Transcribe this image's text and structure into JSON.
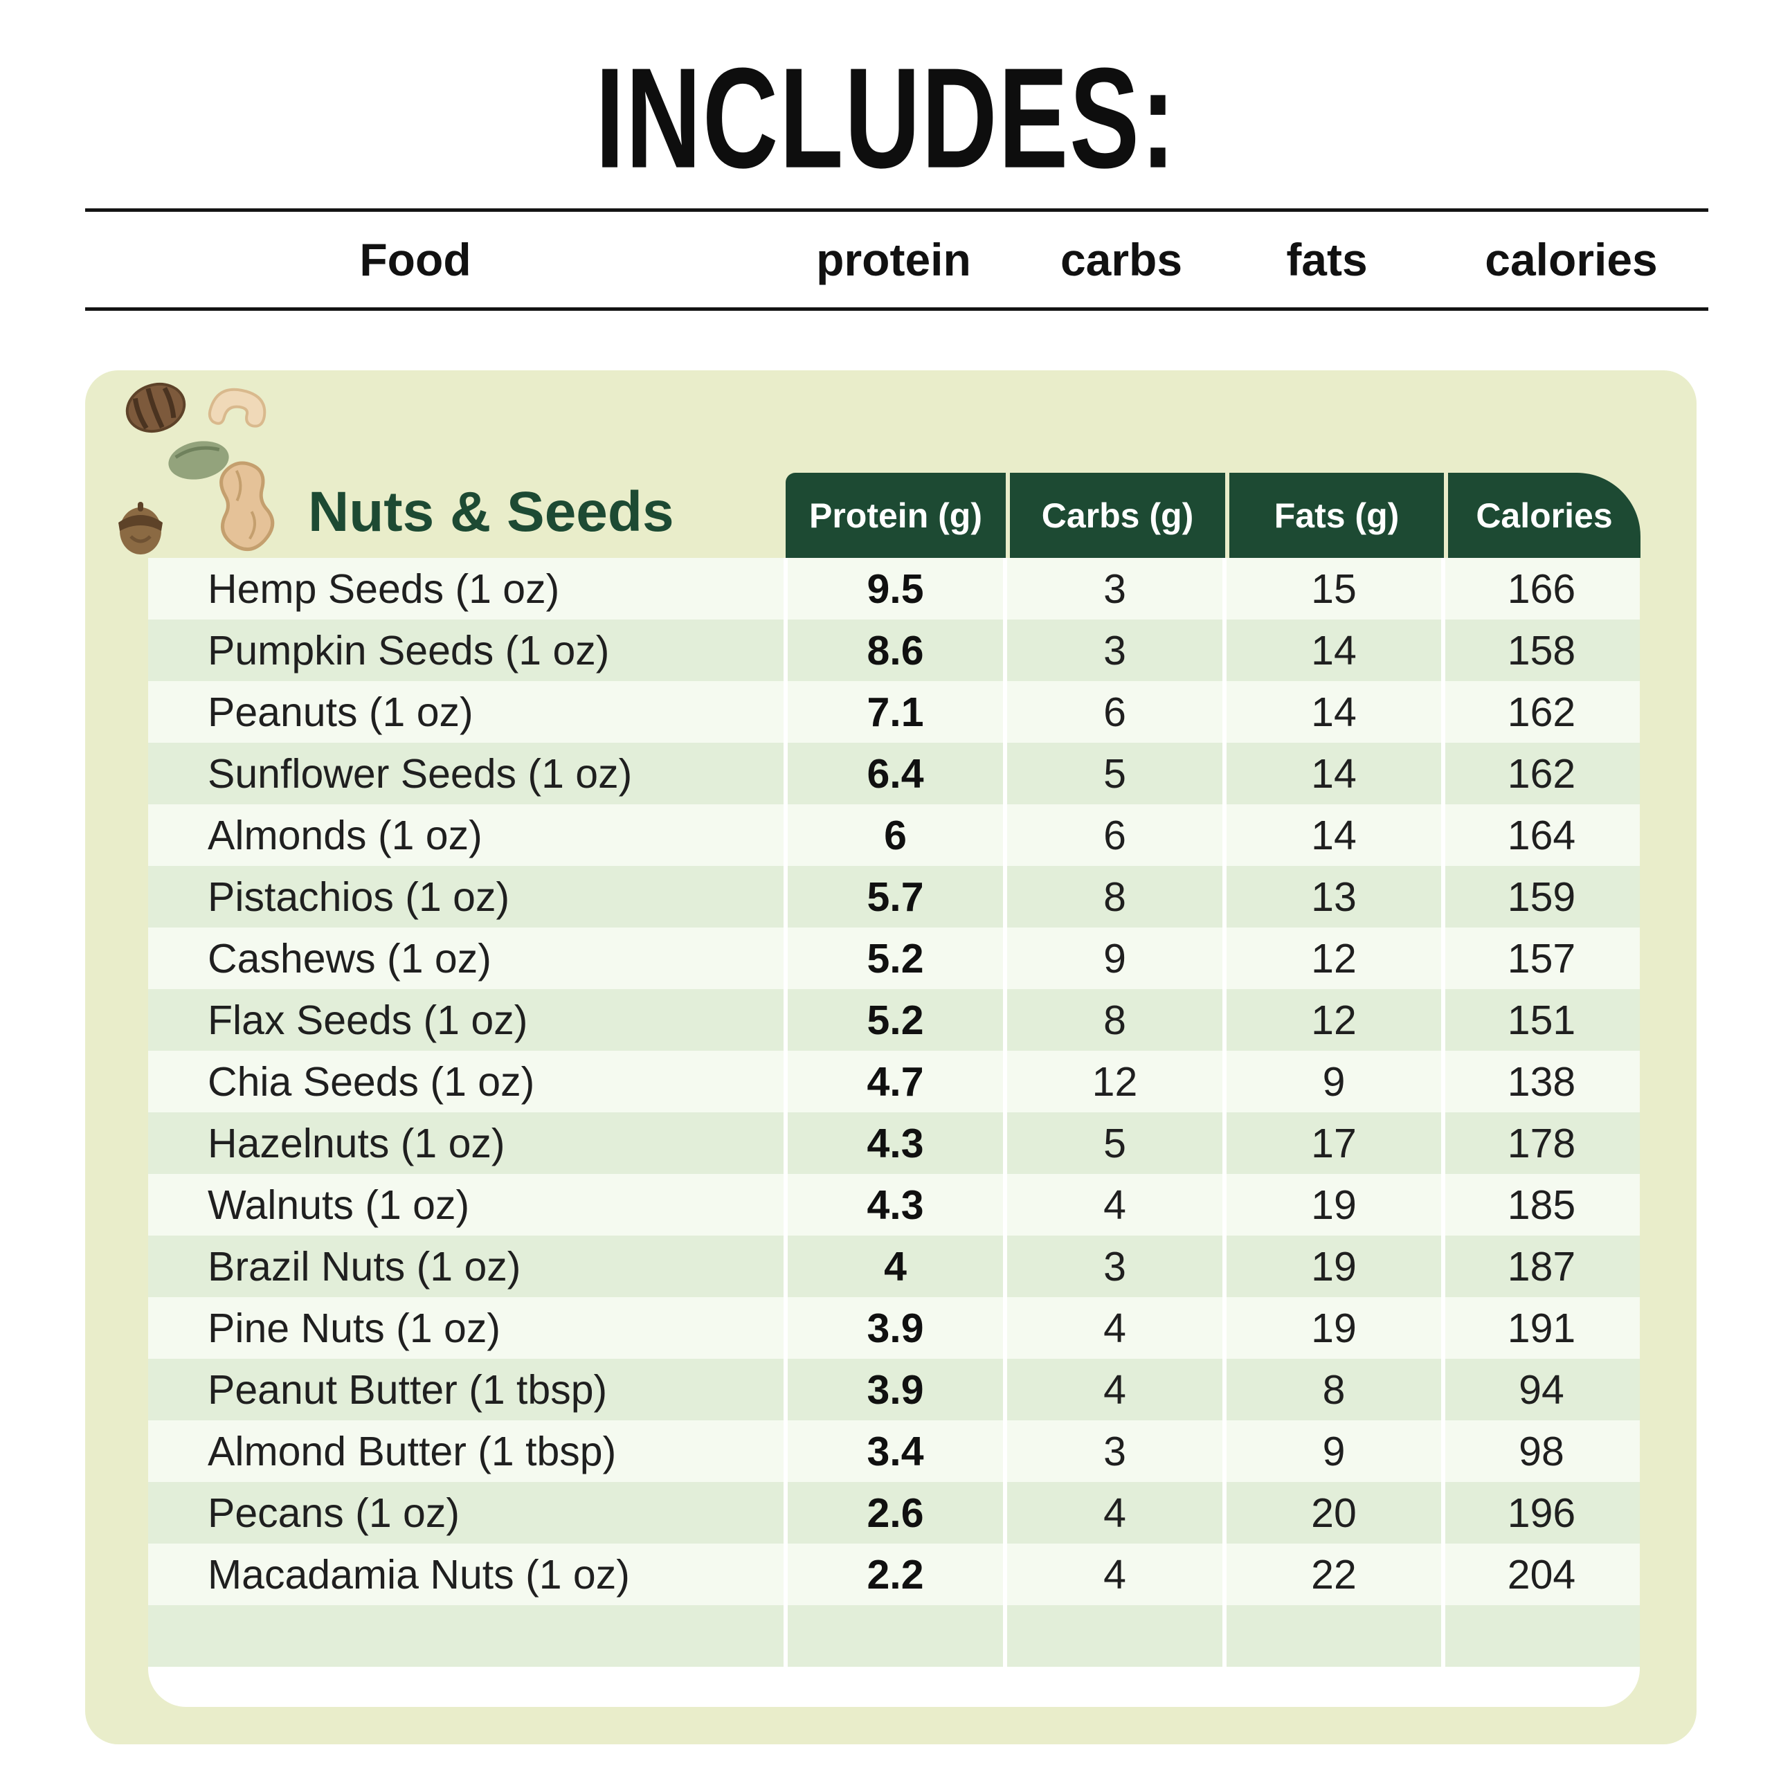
{
  "title": "INCLUDES:",
  "summary_header": {
    "food_label": "Food",
    "protein_label": "protein",
    "carbs_label": "carbs",
    "fats_label": "fats",
    "calories_label": "calories"
  },
  "card": {
    "title": "Nuts & Seeds",
    "icon": "nuts-and-seeds-illustration",
    "columns": [
      "Protein (g)",
      "Carbs (g)",
      "Fats (g)",
      "Calories"
    ]
  },
  "colors": {
    "card_background": "#e9edca",
    "header_green": "#1d4a33",
    "stripe_light": "#f5faf0",
    "stripe_dark": "#e2eed9"
  },
  "chart_data": {
    "type": "table",
    "title": "Nuts & Seeds",
    "columns": [
      "Food",
      "Protein (g)",
      "Carbs (g)",
      "Fats (g)",
      "Calories"
    ],
    "rows": [
      [
        "Hemp Seeds (1 oz)",
        "9.5",
        "3",
        "15",
        "166"
      ],
      [
        "Pumpkin Seeds (1 oz)",
        "8.6",
        "3",
        "14",
        "158"
      ],
      [
        "Peanuts (1 oz)",
        "7.1",
        "6",
        "14",
        "162"
      ],
      [
        "Sunflower Seeds (1 oz)",
        "6.4",
        "5",
        "14",
        "162"
      ],
      [
        "Almonds (1 oz)",
        "6",
        "6",
        "14",
        "164"
      ],
      [
        "Pistachios (1 oz)",
        "5.7",
        "8",
        "13",
        "159"
      ],
      [
        "Cashews (1 oz)",
        "5.2",
        "9",
        "12",
        "157"
      ],
      [
        "Flax Seeds (1 oz)",
        "5.2",
        "8",
        "12",
        "151"
      ],
      [
        "Chia Seeds (1 oz)",
        "4.7",
        "12",
        "9",
        "138"
      ],
      [
        "Hazelnuts (1 oz)",
        "4.3",
        "5",
        "17",
        "178"
      ],
      [
        "Walnuts (1 oz)",
        "4.3",
        "4",
        "19",
        "185"
      ],
      [
        "Brazil Nuts (1 oz)",
        "4",
        "3",
        "19",
        "187"
      ],
      [
        "Pine Nuts (1 oz)",
        "3.9",
        "4",
        "19",
        "191"
      ],
      [
        "Peanut Butter (1 tbsp)",
        "3.9",
        "4",
        "8",
        "94"
      ],
      [
        "Almond Butter (1 tbsp)",
        "3.4",
        "3",
        "9",
        "98"
      ],
      [
        "Pecans (1 oz)",
        "2.6",
        "4",
        "20",
        "196"
      ],
      [
        "Macadamia Nuts (1 oz)",
        "2.2",
        "4",
        "22",
        "204"
      ]
    ]
  }
}
